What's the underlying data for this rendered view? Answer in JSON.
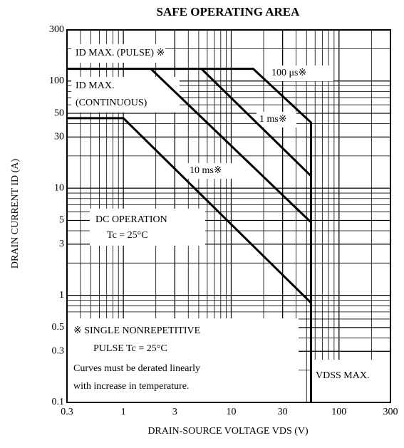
{
  "chart_data": {
    "type": "line",
    "title": "SAFE OPERATING AREA",
    "x_label": "DRAIN-SOURCE VOLTAGE  VDS  (V)",
    "y_label": "DRAIN CURRENT  ID  (A)",
    "log_x": true,
    "log_y": true,
    "grid": true,
    "xlim": [
      0.3,
      300
    ],
    "ylim": [
      0.1,
      300
    ],
    "xticks": [
      0.3,
      1,
      3,
      10,
      30,
      100,
      300
    ],
    "yticks": [
      0.1,
      0.3,
      0.5,
      1,
      3,
      5,
      10,
      30,
      50,
      100,
      300
    ],
    "series": [
      {
        "color": "#000000",
        "x": [
          0.3,
          16,
          55,
          55
        ],
        "values": [
          130,
          130,
          41,
          0.1
        ]
      },
      {
        "color": "#000000",
        "x": [
          5.3,
          55
        ],
        "values": [
          130,
          13
        ]
      },
      {
        "color": "#000000",
        "x": [
          1.8,
          55
        ],
        "values": [
          130,
          4.8
        ]
      },
      {
        "color": "#000000",
        "x": [
          0.3,
          1,
          55
        ],
        "values": [
          45,
          45,
          0.85
        ]
      }
    ],
    "annotations": [
      "ID MAX. (PULSE) ※",
      "ID MAX.",
      "(CONTINUOUS)",
      "100 μs※",
      "1 ms※",
      "10 ms※",
      "DC OPERATION",
      "Tc = 25°C",
      "※  SINGLE  NONREPETITIVE",
      "PULSE   Tc = 25°C",
      "Curves must be derated linearly",
      "with increase in temperature.",
      "VDSS MAX."
    ]
  }
}
